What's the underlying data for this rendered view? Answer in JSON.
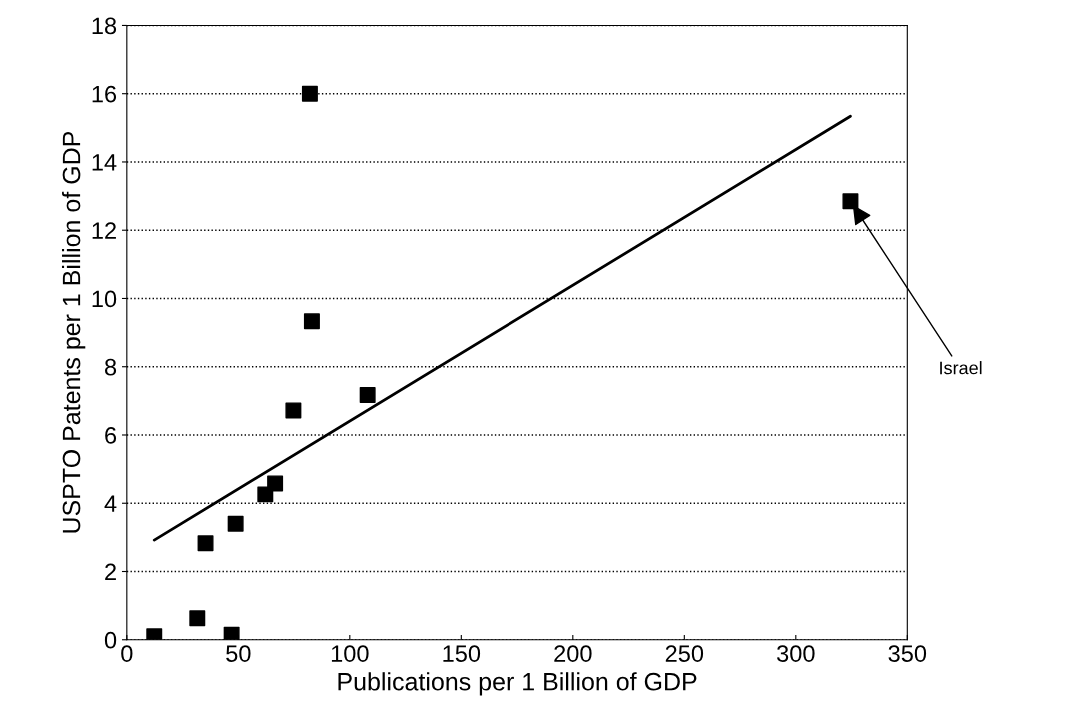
{
  "chart_data": {
    "type": "scatter",
    "xlabel": "Publications per 1 Billion of GDP",
    "ylabel": "USPTO Patents per 1 Billion of GDP",
    "series": [
      {
        "color": "#000000",
        "marker": "square",
        "x": [
          12.3,
          31.6,
          47,
          35.3,
          48.8,
          62.1,
          66.5,
          74.7,
          108,
          83,
          82.1,
          324.5
        ],
        "values": [
          0.1,
          0.63,
          0.15,
          2.83,
          3.4,
          4.26,
          4.58,
          6.72,
          7.17,
          9.33,
          16.0,
          12.85
        ]
      },
      {
        "type": "line",
        "color": "#000000",
        "line_style": "solid",
        "x": [
          12.3,
          324.5
        ],
        "values": [
          2.92,
          15.34
        ]
      }
    ],
    "xlim": [
      0,
      350
    ],
    "xticks": [
      0,
      50,
      100,
      150,
      200,
      250,
      300,
      350
    ],
    "ylim": [
      0,
      18
    ],
    "yticks": [
      0,
      2,
      4,
      6,
      8,
      10,
      12,
      14,
      16,
      18
    ],
    "grid": "y",
    "annotations": [
      {
        "text": "Israel",
        "x": 324.5,
        "y": 12.85
      }
    ]
  }
}
